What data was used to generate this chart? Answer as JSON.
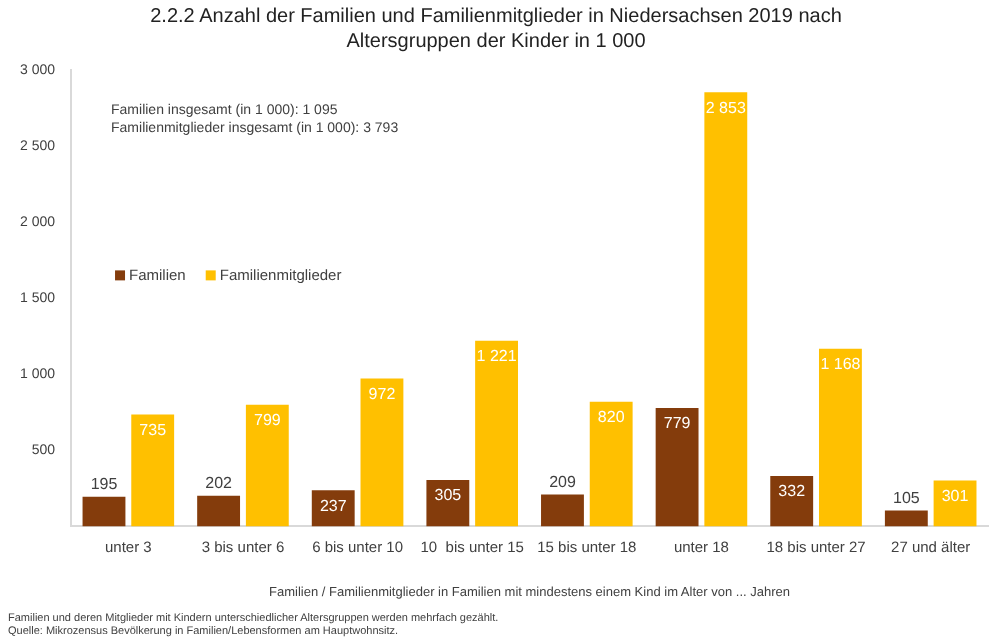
{
  "chart_data": {
    "type": "bar",
    "title": [
      "2.2.2 Anzahl der Familien und Familienmitglieder in Niedersachsen 2019 nach",
      "Altersgruppen der Kinder in 1 000"
    ],
    "xlabel": "Familien / Familienmitglieder in Familien mit mindestens einem Kind im Alter von ... Jahren",
    "categories": [
      "unter 3",
      "3 bis unter 6",
      "6 bis unter 10",
      "10  bis unter 15",
      "15 bis unter 18",
      "unter 18",
      "18 bis unter 27",
      "27 und älter"
    ],
    "series": [
      {
        "name": "Familien",
        "color": "#843c0c",
        "values": [
          195,
          202,
          237,
          305,
          209,
          779,
          332,
          105
        ]
      },
      {
        "name": "Familienmitglieder",
        "color": "#ffc000",
        "values": [
          735,
          799,
          972,
          1221,
          820,
          2853,
          1168,
          301
        ]
      }
    ],
    "ylim": [
      0,
      3000
    ],
    "yticks": [
      {
        "value": 0,
        "label": null
      },
      {
        "value": 500,
        "label": "500"
      },
      {
        "value": 1000,
        "label": "1 000"
      },
      {
        "value": 1500,
        "label": "1 500"
      },
      {
        "value": 2000,
        "label": "2 000"
      },
      {
        "value": 2500,
        "label": "2 500"
      },
      {
        "value": 3000,
        "label": "3 000"
      }
    ],
    "grid": false,
    "legend": "top left",
    "data_labels": true,
    "annotations": [
      "Familien insgesamt (in 1 000): 1 095",
      "Familienmitglieder insgesamt (in 1 000): 3 793",
      "Familien und deren Mitglieder mit Kindern unterschiedlicher Altersgruppen werden mehrfach gezählt.",
      "Quelle: Mikrozensus Bevölkerung in Familien/Lebensformen am Hauptwohnsitz."
    ]
  }
}
